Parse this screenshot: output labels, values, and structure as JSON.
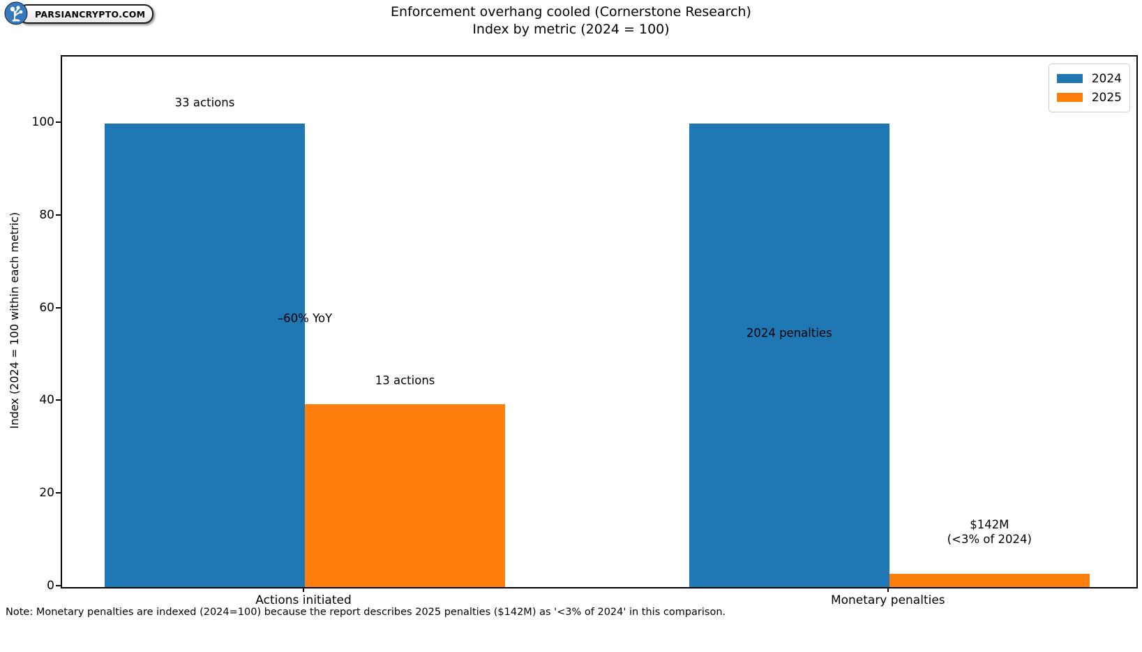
{
  "logo": {
    "text": "PARSIANCRYPTO.COM",
    "icon": "parsiancrypto-logo-icon",
    "circle_color": "#3578be"
  },
  "chart_data": {
    "type": "bar",
    "title": "Enforcement overhang cooled (Cornerstone Research)",
    "subtitle": "Index by metric (2024 = 100)",
    "ylabel": "Index (2024 = 100 within each metric)",
    "categories": [
      "Actions initiated",
      "Monetary penalties"
    ],
    "series": [
      {
        "name": "2024",
        "color": "#1f77b4",
        "values": [
          100,
          100
        ]
      },
      {
        "name": "2025",
        "color": "#ff7f0e",
        "values": [
          39.4,
          2.8
        ]
      }
    ],
    "yticks": [
      0,
      20,
      40,
      60,
      80,
      100
    ],
    "ylim": [
      0,
      114.5
    ],
    "grid": false,
    "legend_position": "upper right",
    "annotations": [
      {
        "lines": [
          "33 actions"
        ],
        "anchor": "bar",
        "cat": 0,
        "series": 0,
        "y_value": 104.5
      },
      {
        "lines": [
          "–60% YoY"
        ],
        "anchor": "tick",
        "cat": 0,
        "series": null,
        "y_value": 58.0
      },
      {
        "lines": [
          "13 actions"
        ],
        "anchor": "bar",
        "cat": 0,
        "series": 1,
        "y_value": 44.6
      },
      {
        "lines": [
          "2024 penalties"
        ],
        "anchor": "bar",
        "cat": 1,
        "series": 0,
        "y_value": 54.8
      },
      {
        "lines": [
          "$142M",
          "(<3% of 2024)"
        ],
        "anchor": "bar",
        "cat": 1,
        "series": 1,
        "y_value": 11.9
      }
    ],
    "note": "Note: Monetary penalties are indexed (2024=100) because the report describes 2025 penalties ($142M) as '<3% of 2024' in this comparison."
  }
}
